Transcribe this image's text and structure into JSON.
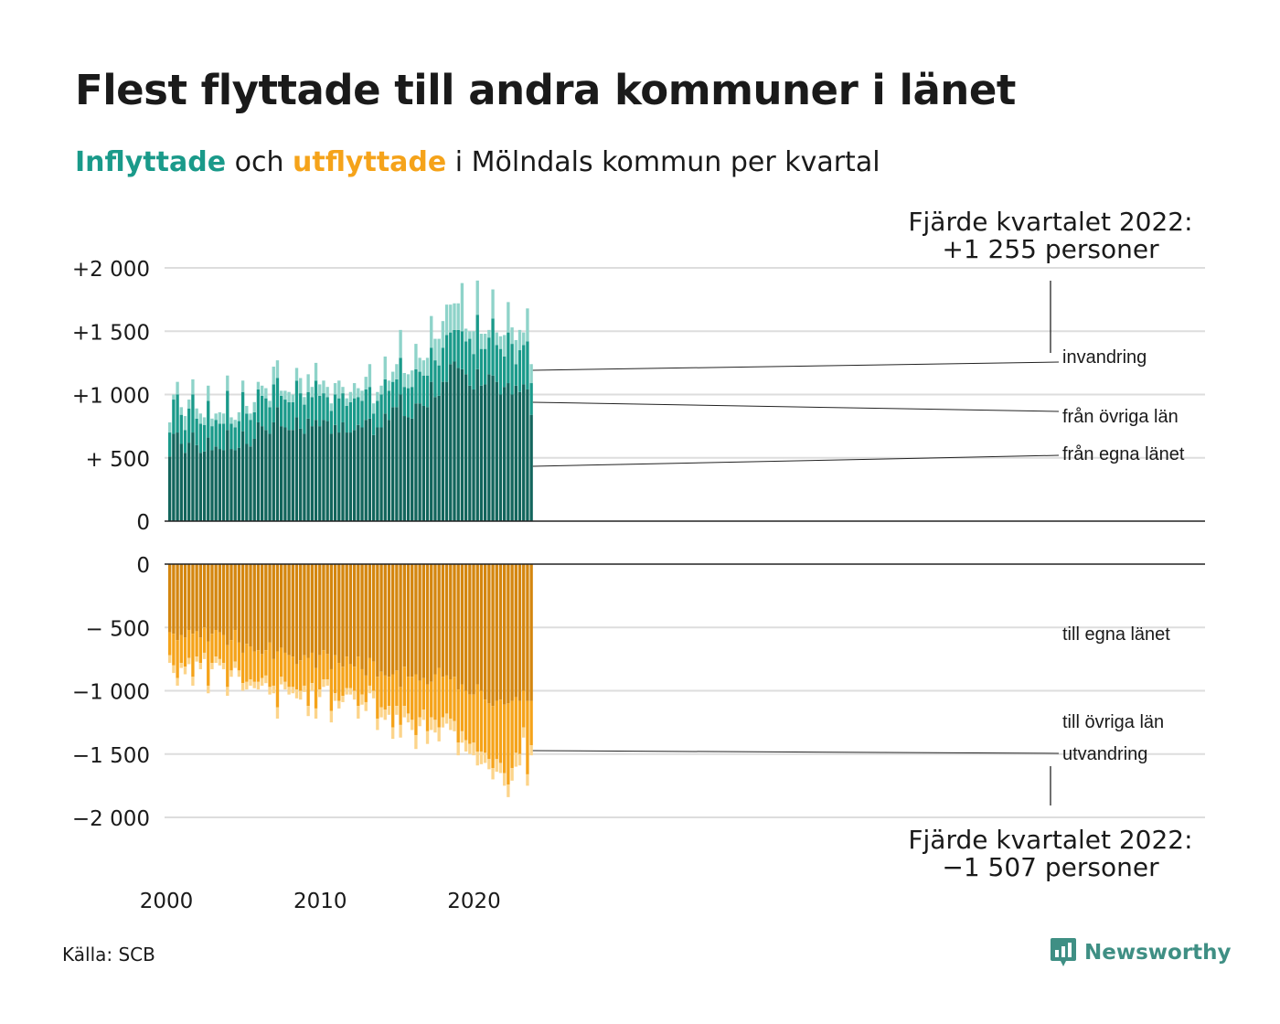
{
  "title": "Flest flyttade till andra kommuner i länet",
  "subtitle": {
    "word_in": "Inflyttade",
    "mid": " och ",
    "word_out": "utflyttade",
    "rest": " i Mölndals kommun per kvartal"
  },
  "colors": {
    "in_egna": "#12655c",
    "in_ovriga": "#1a9a8a",
    "in_invandring": "#8ed3c9",
    "out_egna": "#d4860f",
    "out_ovriga": "#f5a31a",
    "out_utvandring": "#fcd48a",
    "grid": "#dddddd",
    "axis": "#222222"
  },
  "source": "Källa: SCB",
  "logo": {
    "text": "Newsworthy",
    "icon": "newsworthy-logo-icon"
  },
  "chart_data": [
    {
      "type": "bar",
      "stacked": true,
      "start": "2000 Q1",
      "frequency": "quarter",
      "x_tick_labels": [
        "2000",
        "2010",
        "2020"
      ],
      "y_tick_labels": [
        "0",
        "+ 500",
        "+1 000",
        "+1 500",
        "+2 000"
      ],
      "ylim": [
        0,
        2000
      ],
      "grid": true,
      "annotation": {
        "line1": "Fjärde kvartalet 2022:",
        "line2": "+1 255 personer"
      },
      "series": [
        {
          "name": "från egna länet",
          "values": [
            510,
            690,
            700,
            610,
            540,
            620,
            700,
            600,
            540,
            550,
            660,
            560,
            590,
            570,
            560,
            720,
            570,
            560,
            580,
            710,
            610,
            590,
            650,
            780,
            750,
            720,
            690,
            780,
            900,
            750,
            740,
            720,
            720,
            820,
            730,
            690,
            810,
            750,
            800,
            750,
            800,
            790,
            690,
            760,
            700,
            780,
            700,
            700,
            720,
            760,
            740,
            800,
            810,
            680,
            740,
            740,
            850,
            800,
            900,
            900,
            1000,
            830,
            820,
            810,
            930,
            930,
            910,
            900,
            1100,
            980,
            990,
            1100,
            1100,
            1240,
            1260,
            1210,
            1200,
            1160,
            1070,
            1040,
            1200,
            1070,
            1080,
            1160,
            1150,
            1100,
            1000,
            1060,
            1090,
            1000,
            1070,
            1020,
            1080,
            1040,
            840
          ]
        },
        {
          "name": "från övriga län",
          "values": [
            190,
            270,
            300,
            230,
            180,
            270,
            300,
            210,
            230,
            210,
            290,
            190,
            210,
            200,
            210,
            310,
            200,
            180,
            210,
            310,
            240,
            210,
            210,
            260,
            240,
            250,
            210,
            300,
            230,
            240,
            220,
            220,
            220,
            290,
            280,
            230,
            210,
            230,
            310,
            240,
            210,
            190,
            180,
            240,
            270,
            230,
            210,
            240,
            250,
            220,
            210,
            240,
            250,
            170,
            210,
            260,
            270,
            230,
            200,
            220,
            290,
            230,
            230,
            250,
            270,
            250,
            240,
            250,
            270,
            290,
            240,
            270,
            370,
            250,
            250,
            300,
            300,
            260,
            370,
            280,
            430,
            290,
            280,
            290,
            450,
            290,
            360,
            240,
            400,
            400,
            170,
            330,
            310,
            380,
            250
          ]
        },
        {
          "name": "invandring",
          "values": [
            80,
            40,
            100,
            60,
            110,
            70,
            120,
            80,
            80,
            60,
            120,
            60,
            50,
            90,
            80,
            120,
            50,
            60,
            70,
            90,
            60,
            50,
            80,
            60,
            80,
            80,
            50,
            140,
            140,
            40,
            70,
            80,
            60,
            100,
            120,
            60,
            140,
            80,
            140,
            90,
            100,
            80,
            60,
            90,
            140,
            50,
            60,
            80,
            120,
            70,
            80,
            100,
            180,
            80,
            70,
            70,
            180,
            80,
            80,
            120,
            220,
            110,
            110,
            130,
            200,
            110,
            120,
            140,
            250,
            170,
            210,
            210,
            240,
            220,
            210,
            210,
            380,
            100,
            60,
            180,
            270,
            120,
            120,
            60,
            230,
            100,
            100,
            170,
            240,
            130,
            190,
            160,
            100,
            260,
            150
          ]
        }
      ]
    },
    {
      "type": "bar",
      "stacked": true,
      "start": "2000 Q1",
      "frequency": "quarter",
      "y_tick_labels": [
        "0",
        "− 500",
        "−1 000",
        "−1 500",
        "−2 000"
      ],
      "ylim": [
        -2000,
        0
      ],
      "grid": true,
      "annotation": {
        "line1": "Fjärde kvartalet 2022:",
        "line2": "−1 507 personer"
      },
      "series": [
        {
          "name": "till egna länet",
          "values": [
            -540,
            -550,
            -600,
            -560,
            -580,
            -520,
            -550,
            -530,
            -580,
            -500,
            -610,
            -550,
            -520,
            -540,
            -560,
            -640,
            -600,
            -520,
            -620,
            -700,
            -630,
            -650,
            -690,
            -680,
            -710,
            -680,
            -620,
            -750,
            -690,
            -660,
            -700,
            -720,
            -730,
            -790,
            -760,
            -720,
            -740,
            -700,
            -820,
            -720,
            -680,
            -710,
            -830,
            -720,
            -780,
            -810,
            -730,
            -790,
            -810,
            -730,
            -830,
            -880,
            -740,
            -770,
            -890,
            -850,
            -880,
            -890,
            -870,
            -840,
            -970,
            -810,
            -890,
            -890,
            -870,
            -920,
            -900,
            -950,
            -930,
            -870,
            -820,
            -890,
            -880,
            -910,
            -890,
            -990,
            -950,
            -1000,
            -1030,
            -1030,
            -950,
            -1000,
            -1070,
            -1100,
            -1120,
            -1080,
            -1070,
            -1110,
            -1100,
            -1080,
            -1050,
            -1080,
            -1000,
            -1080,
            -1080
          ]
        },
        {
          "name": "till övriga län",
          "values": [
            -180,
            -250,
            -300,
            -220,
            -230,
            -220,
            -340,
            -200,
            -200,
            -200,
            -350,
            -230,
            -210,
            -210,
            -220,
            -330,
            -240,
            -250,
            -220,
            -240,
            -300,
            -260,
            -240,
            -250,
            -190,
            -200,
            -350,
            -210,
            -440,
            -230,
            -230,
            -250,
            -240,
            -200,
            -240,
            -240,
            -380,
            -240,
            -320,
            -270,
            -230,
            -200,
            -330,
            -300,
            -300,
            -230,
            -250,
            -190,
            -190,
            -390,
            -200,
            -210,
            -220,
            -230,
            -330,
            -280,
            -270,
            -230,
            -420,
            -280,
            -300,
            -310,
            -290,
            -340,
            -480,
            -290,
            -250,
            -370,
            -280,
            -360,
            -470,
            -320,
            -300,
            -310,
            -350,
            -420,
            -370,
            -390,
            -390,
            -380,
            -530,
            -480,
            -420,
            -440,
            -490,
            -460,
            -500,
            -540,
            -640,
            -530,
            -440,
            -420,
            -290,
            -580,
            -350
          ]
        },
        {
          "name": "utvandring",
          "values": [
            -60,
            -60,
            -60,
            -40,
            -60,
            -50,
            -70,
            -40,
            -50,
            -50,
            -60,
            -50,
            -50,
            -50,
            -50,
            -70,
            -50,
            -50,
            -50,
            -60,
            -60,
            -50,
            -50,
            -60,
            -60,
            -60,
            -60,
            -60,
            -90,
            -60,
            -60,
            -60,
            -50,
            -70,
            -70,
            -50,
            -80,
            -60,
            -80,
            -60,
            -60,
            -50,
            -90,
            -60,
            -60,
            -50,
            -50,
            -50,
            -70,
            -100,
            -80,
            -70,
            -60,
            -60,
            -90,
            -80,
            -80,
            -70,
            -90,
            -70,
            -100,
            -90,
            -70,
            -80,
            -110,
            -70,
            -80,
            -100,
            -100,
            -100,
            -110,
            -80,
            -80,
            -90,
            -80,
            -100,
            -90,
            -90,
            -80,
            -100,
            -110,
            -100,
            -80,
            -80,
            -90,
            -100,
            -80,
            -100,
            -100,
            -100,
            -110,
            -90,
            -80,
            -90,
            -80
          ]
        }
      ]
    }
  ]
}
